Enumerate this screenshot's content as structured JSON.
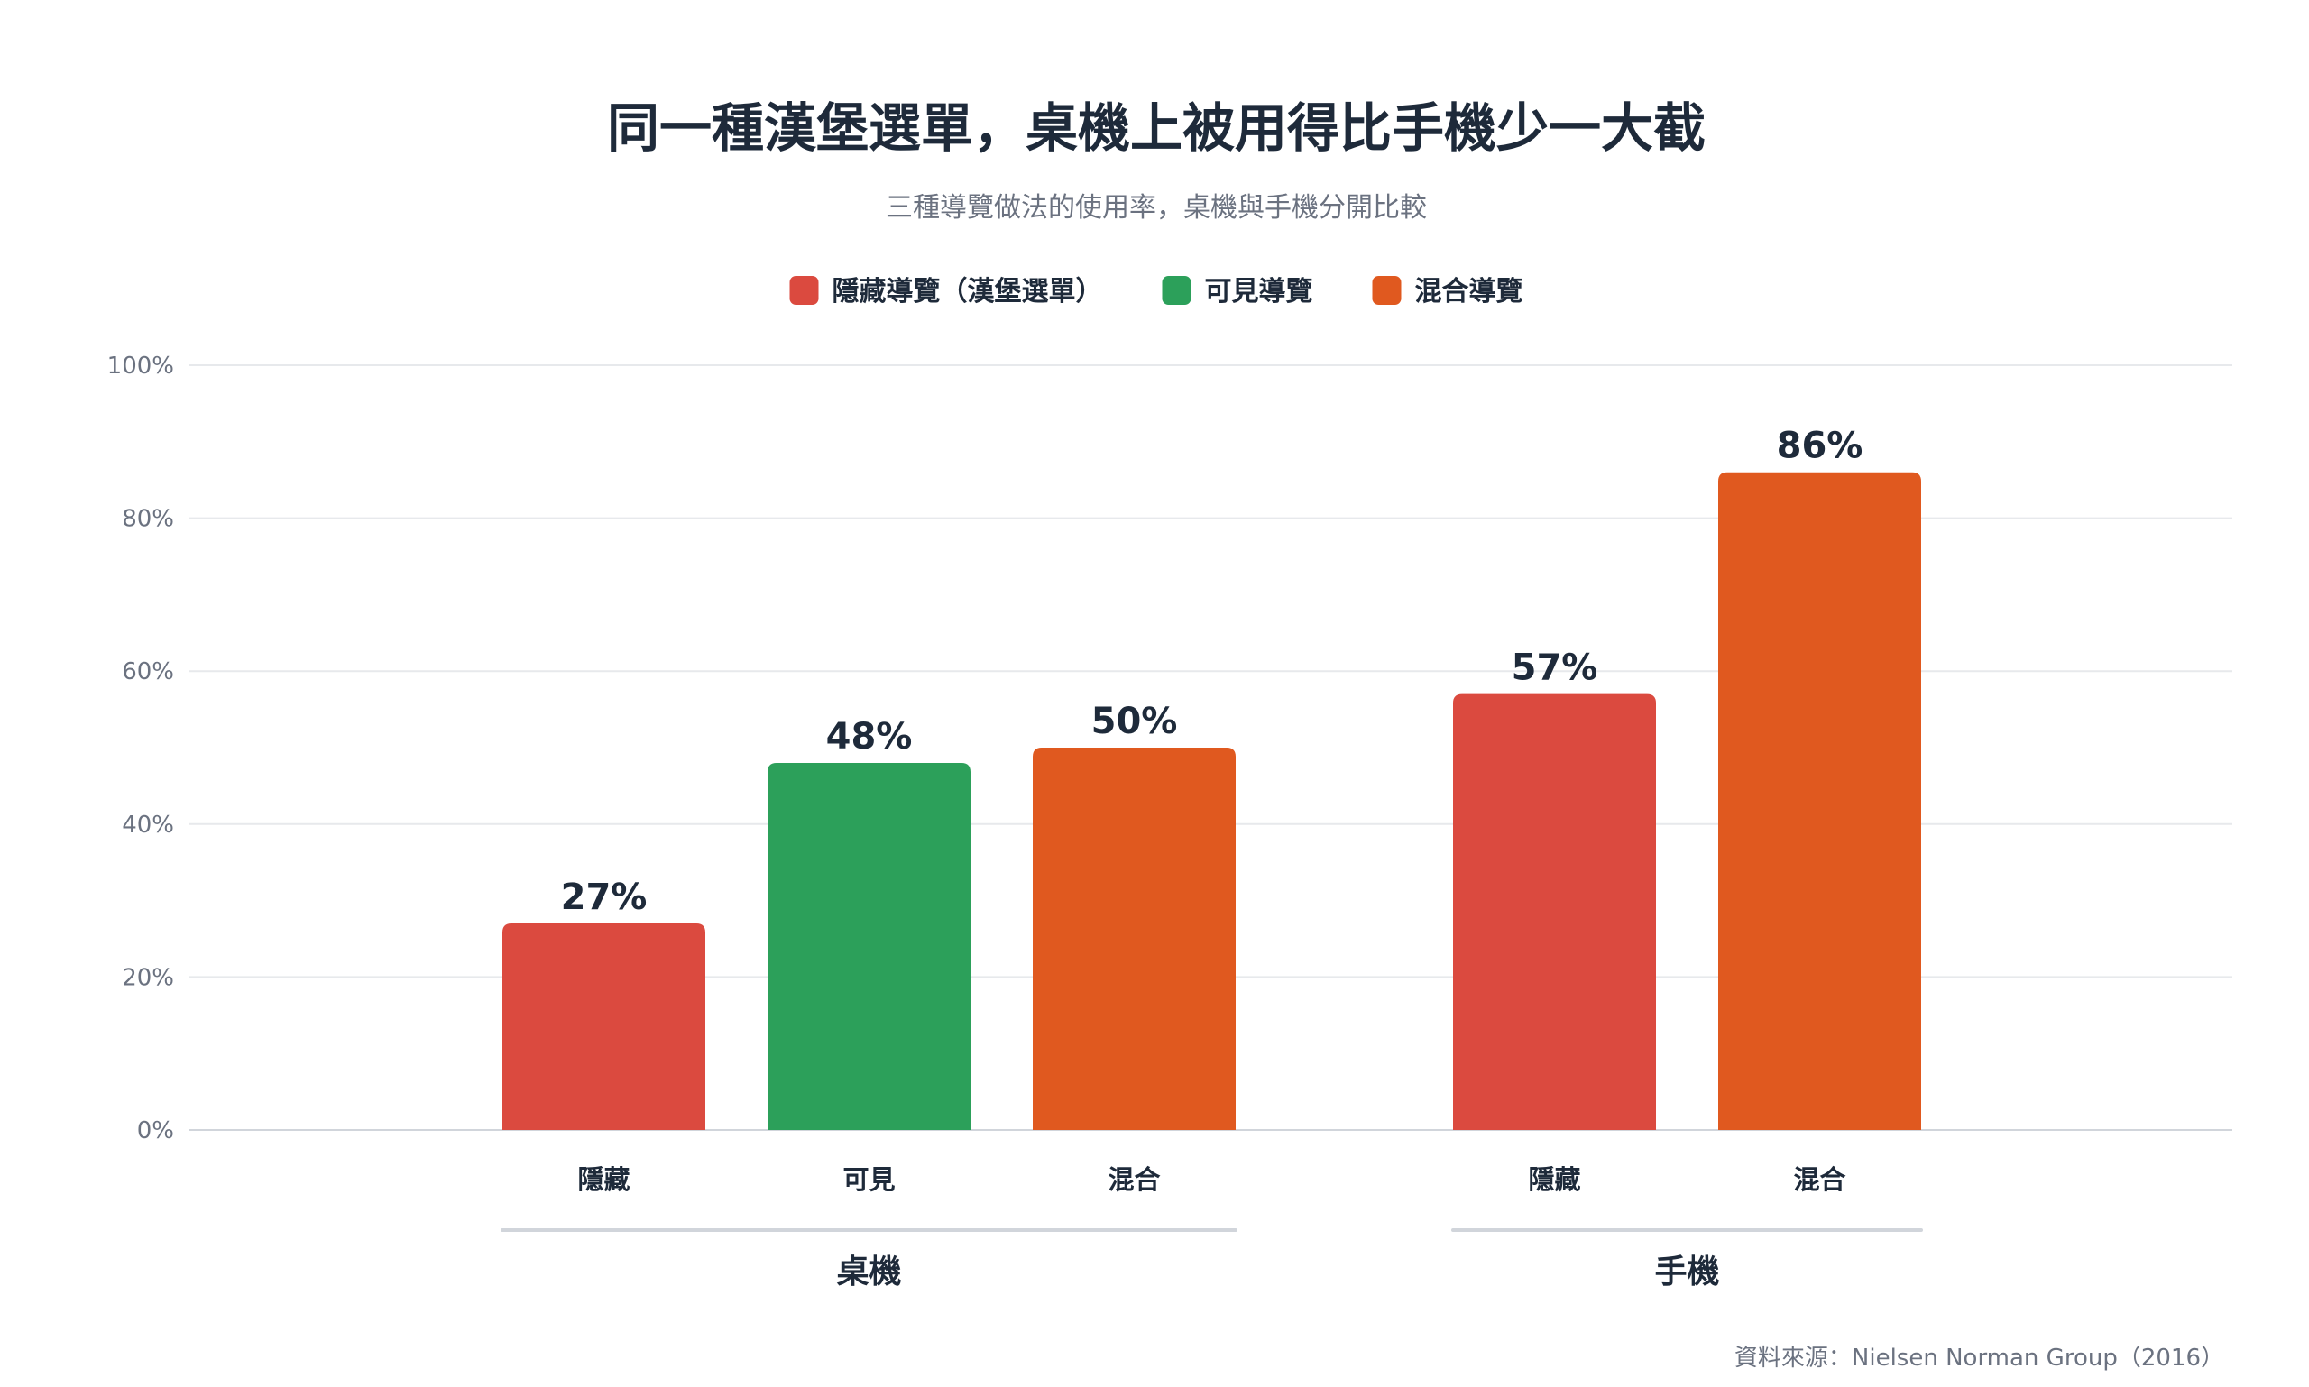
{
  "chart_data": {
    "type": "bar",
    "title": "同一種漢堡選單，桌機上被用得比手機少一大截",
    "subtitle": "三種導覽做法的使用率，桌機與手機分開比較",
    "legend": {
      "placement": "top-center",
      "entries": [
        {
          "label": "隱藏導覽（漢堡選單）",
          "color": "#DB4A3F"
        },
        {
          "label": "可見導覽",
          "color": "#2CA05A"
        },
        {
          "label": "混合導覽",
          "color": "#E0591F"
        }
      ]
    },
    "y_axis": {
      "min": 0,
      "max": 100,
      "ticks": [
        0,
        20,
        40,
        60,
        80,
        100
      ],
      "tick_labels": [
        "0%",
        "20%",
        "40%",
        "60%",
        "80%",
        "100%"
      ],
      "grid": true
    },
    "groups": [
      {
        "label": "桌機",
        "bars": [
          {
            "category": "隱藏",
            "value": 27,
            "value_label": "27%",
            "color": "#DB4A3F"
          },
          {
            "category": "可見",
            "value": 48,
            "value_label": "48%",
            "color": "#2CA05A"
          },
          {
            "category": "混合",
            "value": 50,
            "value_label": "50%",
            "color": "#E0591F"
          }
        ]
      },
      {
        "label": "手機",
        "bars": [
          {
            "category": "隱藏",
            "value": 57,
            "value_label": "57%",
            "color": "#DB4A3F"
          },
          {
            "category": "混合",
            "value": 86,
            "value_label": "86%",
            "color": "#E0591F"
          }
        ]
      }
    ],
    "source": "資料來源：Nielsen Norman Group（2016）"
  }
}
